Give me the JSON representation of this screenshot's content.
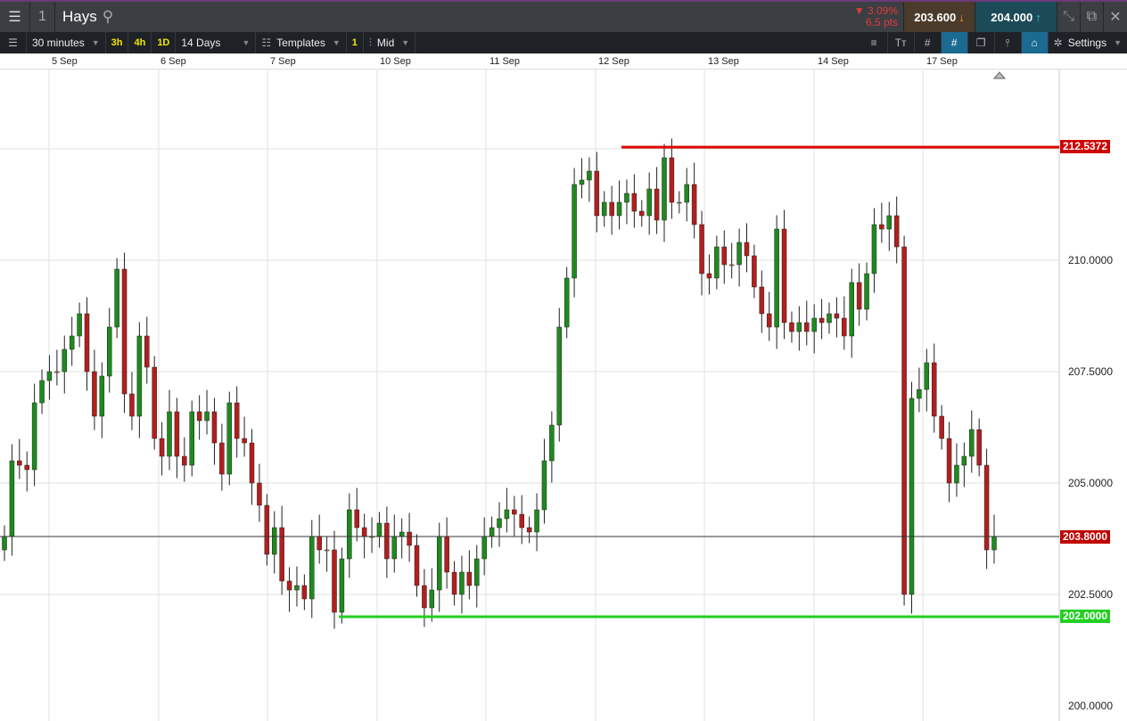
{
  "header": {
    "title": "Hays",
    "badge": "1",
    "change_pct": "▼ 3.09%",
    "change_pts": "6.5 pts",
    "sell": "203.600",
    "buy": "204.000"
  },
  "toolbar": {
    "interval": "30 minutes",
    "quick": [
      "3h",
      "4h",
      "1D"
    ],
    "range": "14 Days",
    "templates": "Templates",
    "count": "1",
    "price_type": "Mid",
    "settings": "Settings"
  },
  "dates": [
    "5 Sep",
    "6 Sep",
    "7 Sep",
    "10 Sep",
    "11 Sep",
    "12 Sep",
    "13 Sep",
    "14 Sep",
    "17 Sep"
  ],
  "price_labels": [
    "210.0000",
    "207.5000",
    "205.0000",
    "202.5000",
    "200.0000"
  ],
  "lines": {
    "resistance": "212.5372",
    "support": "202.0000",
    "current": "203.8000"
  },
  "colors": {
    "up": "#1e8a1e",
    "down": "#b41e1e",
    "resistance": "#e00000",
    "support": "#22d022"
  },
  "chart_data": {
    "type": "candlestick",
    "ylim": [
      200,
      214.4
    ],
    "closes": [
      203.8,
      205.5,
      205.4,
      205.3,
      206.8,
      207.3,
      207.5,
      207.5,
      208.0,
      208.3,
      208.8,
      207.5,
      206.5,
      207.4,
      208.5,
      209.8,
      207.0,
      206.5,
      208.3,
      207.6,
      206.0,
      205.6,
      206.6,
      205.6,
      205.4,
      206.6,
      206.4,
      206.6,
      205.9,
      205.2,
      206.8,
      206.0,
      205.9,
      205.0,
      204.5,
      203.4,
      204.0,
      202.8,
      202.6,
      202.7,
      202.4,
      203.8,
      203.5,
      203.5,
      202.1,
      203.3,
      204.4,
      204.0,
      203.8,
      203.8,
      204.1,
      203.3,
      203.8,
      203.9,
      203.6,
      202.7,
      202.2,
      202.6,
      203.8,
      203.0,
      202.5,
      203.0,
      202.7,
      203.3,
      203.8,
      204.0,
      204.2,
      204.4,
      204.3,
      204.0,
      203.9,
      204.4,
      205.5,
      206.3,
      208.5,
      209.6,
      211.7,
      211.8,
      212.0,
      211.0,
      211.3,
      211.0,
      211.3,
      211.5,
      211.1,
      211.0,
      211.6,
      210.9,
      212.3,
      211.3,
      211.3,
      211.7,
      210.8,
      209.7,
      209.6,
      210.3,
      209.9,
      209.9,
      210.4,
      210.1,
      209.4,
      208.8,
      208.5,
      210.7,
      208.6,
      208.4,
      208.6,
      208.4,
      208.7,
      208.6,
      208.8,
      208.7,
      208.3,
      209.5,
      208.9,
      209.7,
      210.8,
      210.7,
      211.0,
      210.3,
      202.5,
      206.9,
      207.1,
      207.7,
      206.5,
      206.0,
      205.0,
      205.4,
      205.6,
      206.2,
      205.4,
      203.5,
      203.8
    ]
  }
}
